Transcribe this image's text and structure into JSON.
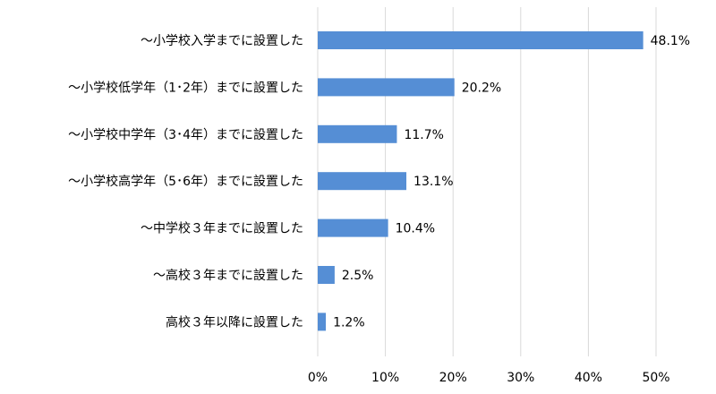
{
  "chart_data": {
    "type": "bar",
    "orientation": "horizontal",
    "categories": [
      "～小学校入学までに設置した",
      "～小学校低学年（1･2年）までに設置した",
      "～小学校中学年（3･4年）までに設置した",
      "～小学校高学年（5･6年）までに設置した",
      "～中学校３年までに設置した",
      "～高校３年までに設置した",
      "高校３年以降に設置した"
    ],
    "values": [
      48.1,
      20.2,
      11.7,
      13.1,
      10.4,
      2.5,
      1.2
    ],
    "value_labels": [
      "48.1%",
      "20.2%",
      "11.7%",
      "13.1%",
      "10.4%",
      "2.5%",
      "1.2%"
    ],
    "xlim": [
      0,
      50
    ],
    "x_ticks": [
      0,
      10,
      20,
      30,
      40,
      50
    ],
    "x_tick_labels": [
      "0%",
      "10%",
      "20%",
      "30%",
      "40%",
      "50%"
    ],
    "title": "",
    "xlabel": "",
    "ylabel": "",
    "grid": "vertical",
    "legend": "none",
    "bar_color": "#558ed5",
    "grid_color": "#d9d9d9"
  }
}
